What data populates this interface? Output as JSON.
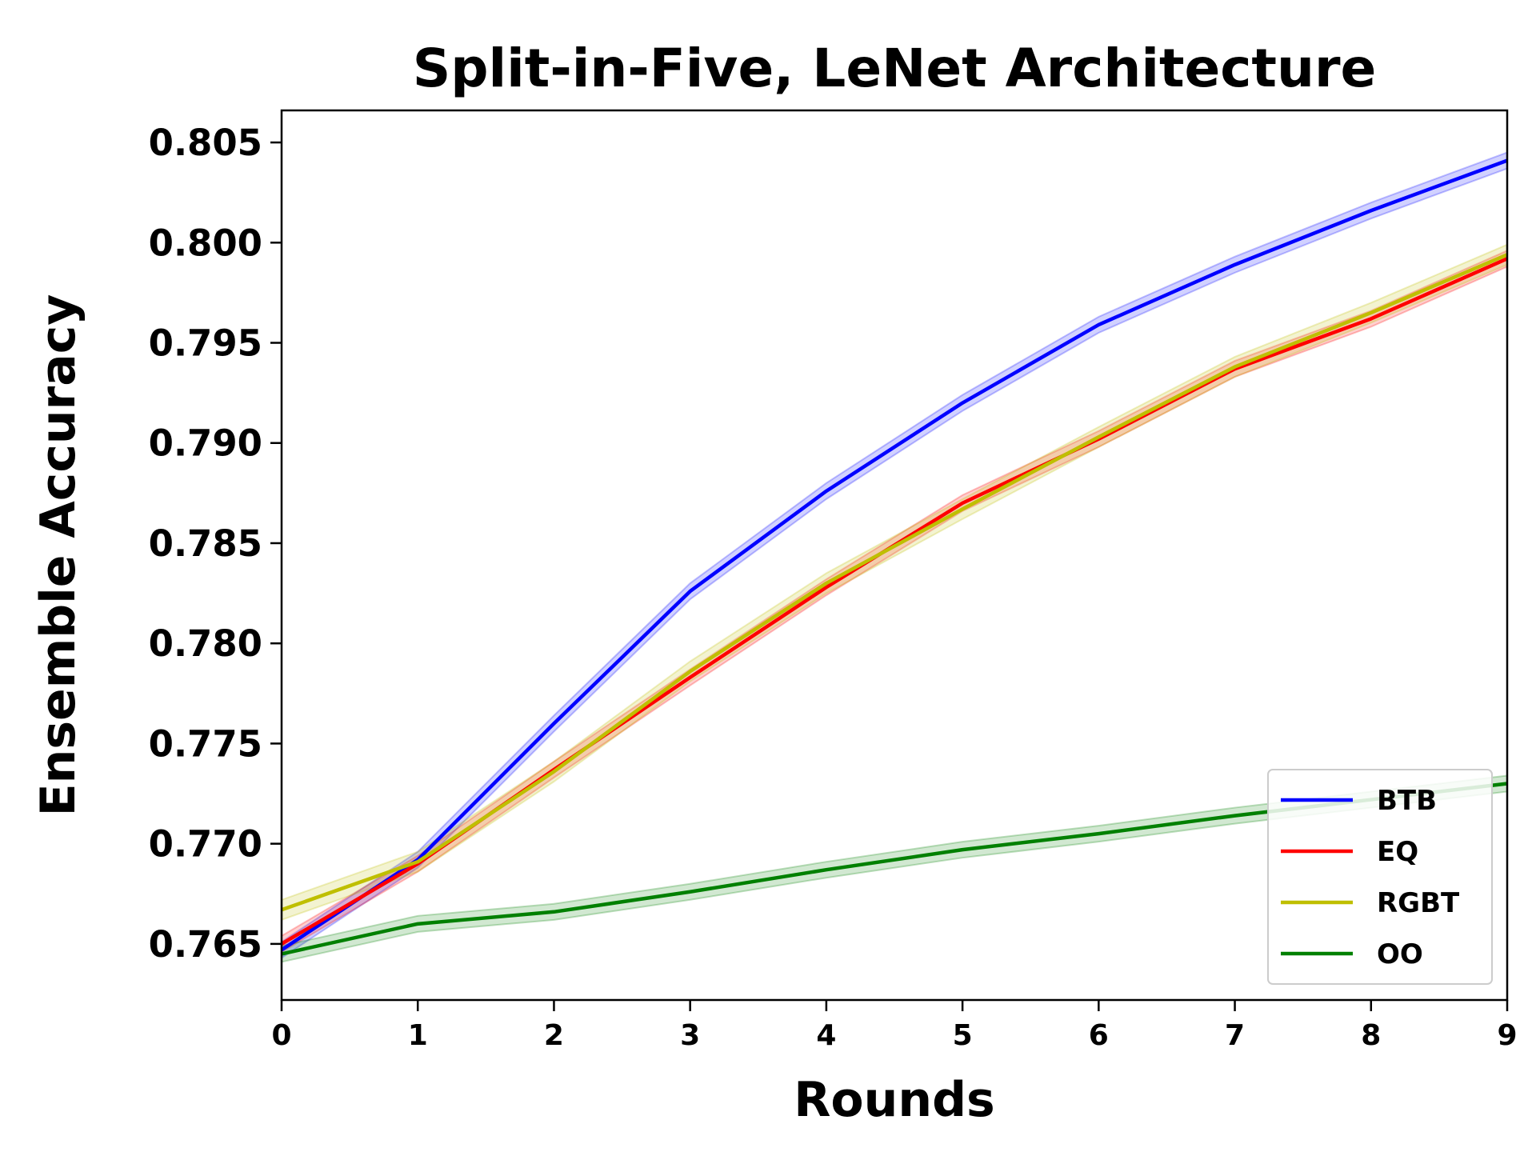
{
  "chart_data": {
    "type": "line",
    "title": "Split-in-Five, LeNet Architecture",
    "xlabel": "Rounds",
    "ylabel": "Ensemble Accuracy",
    "xlim": [
      0,
      9
    ],
    "ylim": [
      0.7622,
      0.8066
    ],
    "xticks": [
      0,
      1,
      2,
      3,
      4,
      5,
      6,
      7,
      8,
      9
    ],
    "yticks": [
      0.765,
      0.77,
      0.775,
      0.78,
      0.785,
      0.79,
      0.795,
      0.8,
      0.805
    ],
    "ytick_labels": [
      "0.765",
      "0.770",
      "0.775",
      "0.780",
      "0.785",
      "0.790",
      "0.795",
      "0.800",
      "0.805"
    ],
    "grid": false,
    "legend_position": "lower-right",
    "x": [
      0,
      1,
      2,
      3,
      4,
      5,
      6,
      7,
      8,
      9
    ],
    "series": [
      {
        "name": "BTB",
        "color": "#0000ff",
        "values": [
          0.7647,
          0.7692,
          0.776,
          0.7826,
          0.7876,
          0.792,
          0.7959,
          0.7989,
          0.8016,
          0.8041
        ],
        "band": 0.0004
      },
      {
        "name": "EQ",
        "color": "#ff0000",
        "values": [
          0.765,
          0.769,
          0.7737,
          0.7783,
          0.7828,
          0.787,
          0.7902,
          0.7937,
          0.7962,
          0.7992
        ],
        "band": 0.0004
      },
      {
        "name": "RGBT",
        "color": "#bfbf00",
        "values": [
          0.7667,
          0.7691,
          0.7736,
          0.7786,
          0.783,
          0.7867,
          0.7903,
          0.7938,
          0.7965,
          0.7994
        ],
        "band": 0.0005
      },
      {
        "name": "OO",
        "color": "#008000",
        "values": [
          0.7645,
          0.766,
          0.7666,
          0.7676,
          0.7687,
          0.7697,
          0.7705,
          0.7714,
          0.7722,
          0.773
        ],
        "band": 0.0004
      }
    ]
  }
}
